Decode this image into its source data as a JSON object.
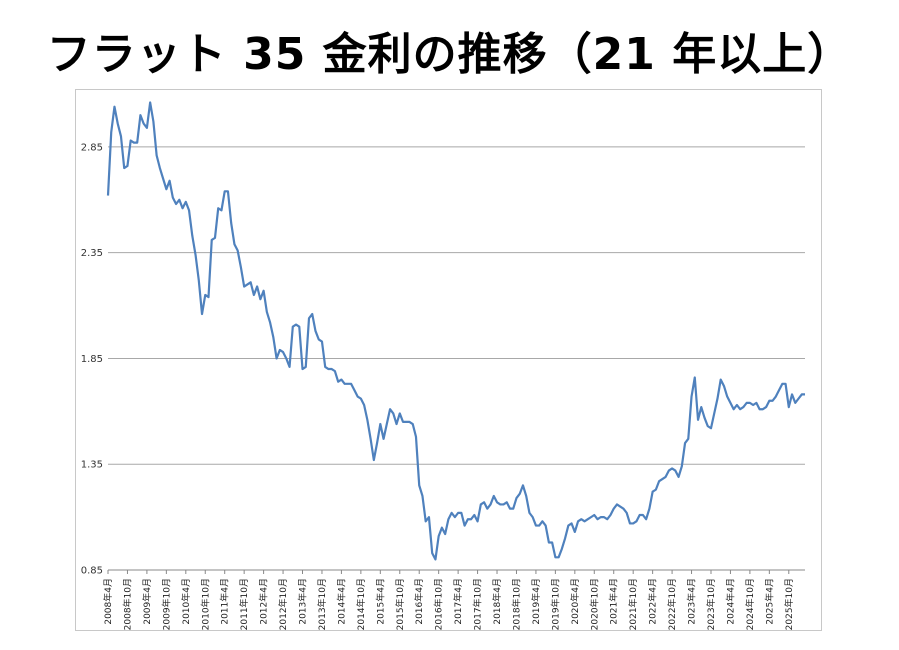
{
  "title": "フラット 35 金利の推移（21 年以上）",
  "chart_data": {
    "type": "line",
    "title": "フラット 35 金利の推移（21 年以上）",
    "xlabel": "",
    "ylabel": "",
    "ylim": [
      0.85,
      3.1
    ],
    "yticks": [
      0.85,
      1.35,
      1.85,
      2.35,
      2.85
    ],
    "ytick_labels": [
      "0.85",
      "1.35",
      "1.85",
      "2.35",
      "2.85"
    ],
    "grid": true,
    "legend": "none",
    "color": "#4f81bd",
    "start": "2008年4月",
    "xtick_labels": [
      "2008年4月",
      "2008年10月",
      "2009年4月",
      "2009年10月",
      "2010年4月",
      "2010年10月",
      "2011年4月",
      "2011年10月",
      "2012年4月",
      "2012年10月",
      "2013年4月",
      "2013年10月",
      "2014年4月",
      "2014年10月",
      "2015年4月",
      "2015年10月",
      "2016年4月",
      "2016年10月",
      "2017年4月",
      "2017年10月",
      "2018年4月",
      "2018年10月",
      "2019年4月",
      "2019年10月",
      "2020年4月",
      "2020年10月",
      "2021年4月",
      "2021年10月",
      "2022年4月",
      "2022年10月",
      "2023年4月",
      "2023年10月",
      "2024年4月",
      "2024年10月",
      "2025年4月",
      "2025年10月"
    ],
    "series": [
      {
        "values": [
          2.62,
          2.92,
          3.04,
          2.96,
          2.9,
          2.75,
          2.76,
          2.88,
          2.87,
          2.87,
          3.0,
          2.96,
          2.94,
          3.06,
          2.97,
          2.81,
          2.75,
          2.7,
          2.65,
          2.69,
          2.61,
          2.58,
          2.6,
          2.56,
          2.59,
          2.55,
          2.43,
          2.34,
          2.22,
          2.06,
          2.15,
          2.14,
          2.41,
          2.42,
          2.56,
          2.55,
          2.64,
          2.64,
          2.49,
          2.39,
          2.36,
          2.28,
          2.19,
          2.2,
          2.21,
          2.15,
          2.19,
          2.13,
          2.17,
          2.07,
          2.02,
          1.95,
          1.85,
          1.89,
          1.88,
          1.85,
          1.81,
          2.0,
          2.01,
          2.0,
          1.8,
          1.81,
          2.04,
          2.06,
          1.98,
          1.94,
          1.93,
          1.81,
          1.8,
          1.8,
          1.79,
          1.74,
          1.75,
          1.73,
          1.73,
          1.73,
          1.7,
          1.67,
          1.66,
          1.63,
          1.56,
          1.47,
          1.37,
          1.45,
          1.54,
          1.47,
          1.54,
          1.61,
          1.59,
          1.54,
          1.59,
          1.55,
          1.55,
          1.55,
          1.54,
          1.48,
          1.25,
          1.2,
          1.08,
          1.1,
          0.93,
          0.9,
          1.01,
          1.05,
          1.02,
          1.09,
          1.12,
          1.1,
          1.12,
          1.12,
          1.06,
          1.09,
          1.09,
          1.11,
          1.08,
          1.16,
          1.17,
          1.14,
          1.16,
          1.2,
          1.17,
          1.16,
          1.16,
          1.17,
          1.14,
          1.14,
          1.19,
          1.21,
          1.25,
          1.2,
          1.12,
          1.1,
          1.06,
          1.06,
          1.08,
          1.06,
          0.98,
          0.98,
          0.91,
          0.91,
          0.95,
          1.0,
          1.06,
          1.07,
          1.03,
          1.08,
          1.09,
          1.08,
          1.09,
          1.1,
          1.11,
          1.09,
          1.1,
          1.1,
          1.09,
          1.11,
          1.14,
          1.16,
          1.15,
          1.14,
          1.12,
          1.07,
          1.07,
          1.08,
          1.11,
          1.11,
          1.09,
          1.14,
          1.22,
          1.23,
          1.27,
          1.28,
          1.29,
          1.32,
          1.33,
          1.32,
          1.29,
          1.34,
          1.45,
          1.47,
          1.67,
          1.76,
          1.56,
          1.62,
          1.57,
          1.53,
          1.52,
          1.59,
          1.66,
          1.75,
          1.72,
          1.67,
          1.64,
          1.61,
          1.63,
          1.61,
          1.62,
          1.64,
          1.64,
          1.63,
          1.64,
          1.61,
          1.61,
          1.62,
          1.65,
          1.65,
          1.67,
          1.7,
          1.73,
          1.73,
          1.62,
          1.68,
          1.64,
          1.66,
          1.68,
          1.68
        ]
      }
    ]
  }
}
